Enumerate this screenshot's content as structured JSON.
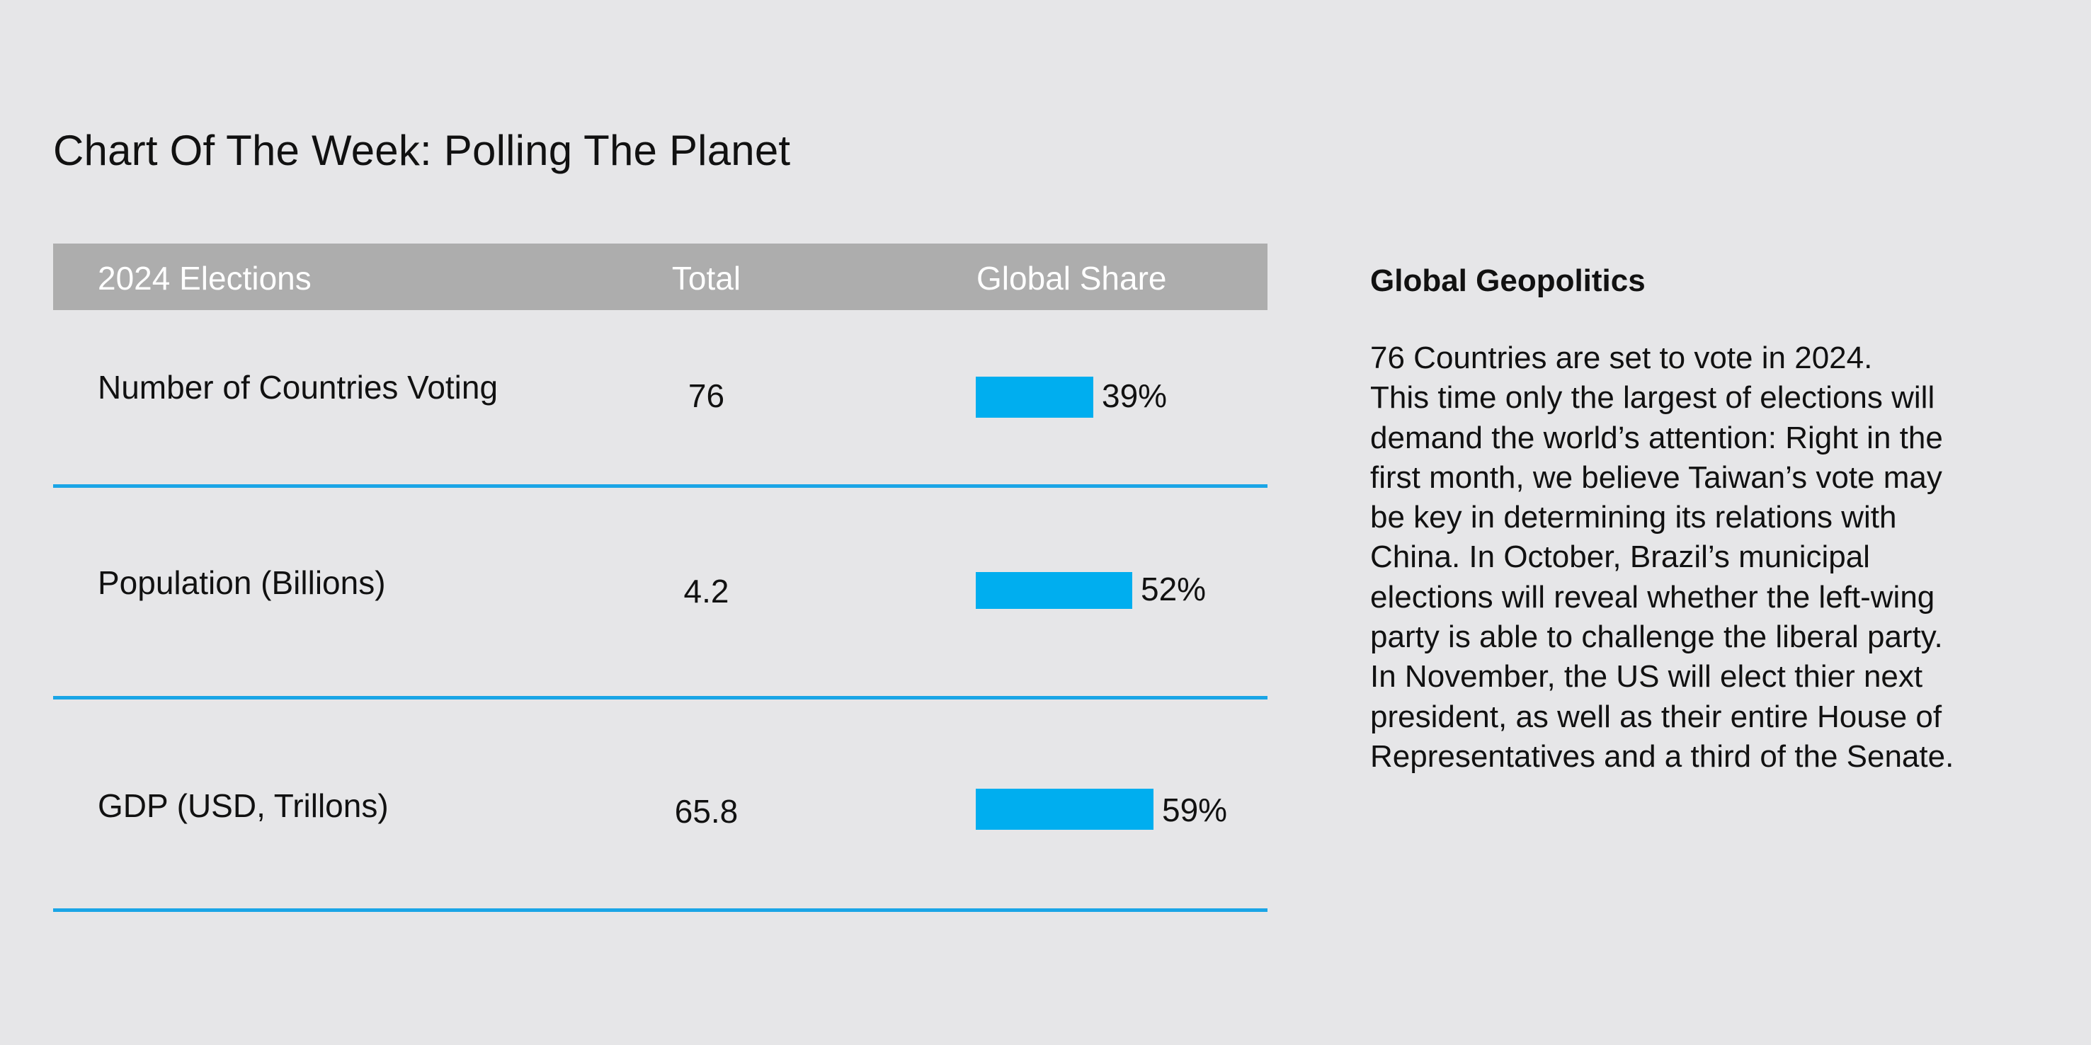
{
  "title": "Chart Of The Week: Polling The Planet",
  "chart_data": {
    "type": "table",
    "columns": [
      "2024 Elections",
      "Total",
      "Global Share"
    ],
    "rows": [
      {
        "label": "Number of Countries Voting",
        "total": "76",
        "share": 39,
        "share_label": "39%"
      },
      {
        "label": "Population (Billions)",
        "total": "4.2",
        "share": 52,
        "share_label": "52%"
      },
      {
        "label": "GDP (USD, Trillons)",
        "total": "65.8",
        "share": 59,
        "share_label": "59%"
      }
    ]
  },
  "sidebar": {
    "heading": "Global Geopolitics",
    "lines": [
      "76 Countries are set to vote in 2024.",
      "This time only the largest of elections will",
      "demand the world’s attention: Right in the",
      "first month, we believe Taiwan’s vote may",
      "be key in determining its relations with",
      "China. In October, Brazil’s municipal",
      "elections will reveal whether the left-wing",
      "party is able to challenge the liberal party.",
      "In November, the US will elect thier next",
      "president, as well as their entire House of",
      "Representatives and a third of the Senate."
    ]
  },
  "colors": {
    "accent": "#00aeef",
    "rule": "#1aa5e6",
    "header_bg": "#adadad",
    "background": "#e6e6e8"
  }
}
